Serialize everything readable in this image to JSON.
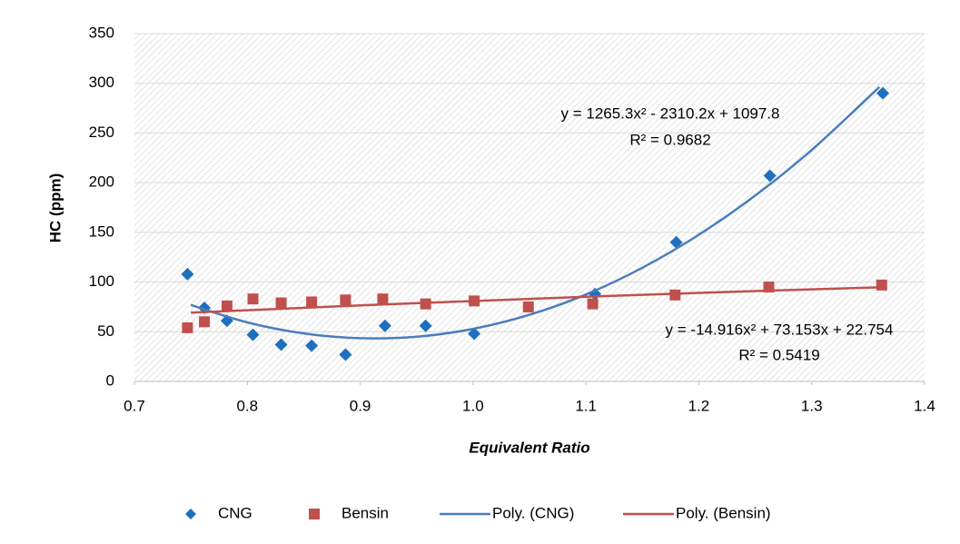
{
  "chart_data": {
    "type": "scatter",
    "y_label": "HC (ppm)",
    "x_label": "Equivalent Ratio",
    "xlim": [
      0.7,
      1.4
    ],
    "xticks": [
      0.7,
      0.8,
      0.9,
      {
        "value": 1,
        "label": "1.0"
      },
      1.1,
      1.2,
      1.3,
      1.4
    ],
    "ylim": [
      0,
      350
    ],
    "yticks": [
      0,
      50,
      100,
      150,
      200,
      250,
      300,
      350
    ],
    "grid": true,
    "legend": "bottom",
    "series": [
      {
        "name": "CNG",
        "color": "#1f6fbf",
        "marker": "diamond",
        "x": [
          0.747,
          0.762,
          0.782,
          0.805,
          0.83,
          0.857,
          0.887,
          0.922,
          0.958,
          1.001,
          1.108,
          1.18,
          1.263,
          1.363
        ],
        "values": [
          108,
          74,
          61,
          47,
          37,
          36,
          27,
          56,
          56,
          48,
          88,
          140,
          207,
          290
        ]
      },
      {
        "name": "Bensin",
        "color": "#c0504d",
        "marker": "square",
        "x": [
          0.747,
          0.762,
          0.782,
          0.805,
          0.83,
          0.857,
          0.887,
          0.92,
          0.958,
          1.001,
          1.049,
          1.106,
          1.179,
          1.262,
          1.362
        ],
        "values": [
          54,
          60,
          76,
          83,
          79,
          80,
          82,
          83,
          78,
          81,
          75,
          78,
          87,
          95,
          97
        ]
      },
      {
        "name": "Poly. (CNG)",
        "color": "#4a7ebb",
        "marker": "line",
        "x": [
          0.75,
          0.8,
          0.85,
          0.9,
          0.95,
          1.0,
          1.05,
          1.1,
          1.15,
          1.2,
          1.25,
          1.3,
          1.36
        ],
        "values": [
          76.9,
          59.4,
          48.3,
          43.5,
          45.0,
          52.9,
          67.1,
          87.5,
          114.4,
          147.6,
          187.1,
          232.9,
          296.2
        ]
      },
      {
        "name": "Poly. (Bensin)",
        "color": "#c0504d",
        "marker": "line",
        "x": [
          0.75,
          0.9,
          1.05,
          1.2,
          1.36
        ],
        "values": [
          69.2,
          76.5,
          83.1,
          89.1,
          94.7
        ]
      }
    ],
    "annotations": [
      {
        "text": "y = 1265.3x² - 2310.2x + 1097.8",
        "color": "#1f6fbf"
      },
      {
        "text": "R² = 0.9682",
        "color": "#1f6fbf"
      },
      {
        "text": "y = -14.916x² + 73.153x + 22.754",
        "color": "#c0504d"
      },
      {
        "text": "R² = 0.5419",
        "color": "#c0504d"
      }
    ]
  }
}
